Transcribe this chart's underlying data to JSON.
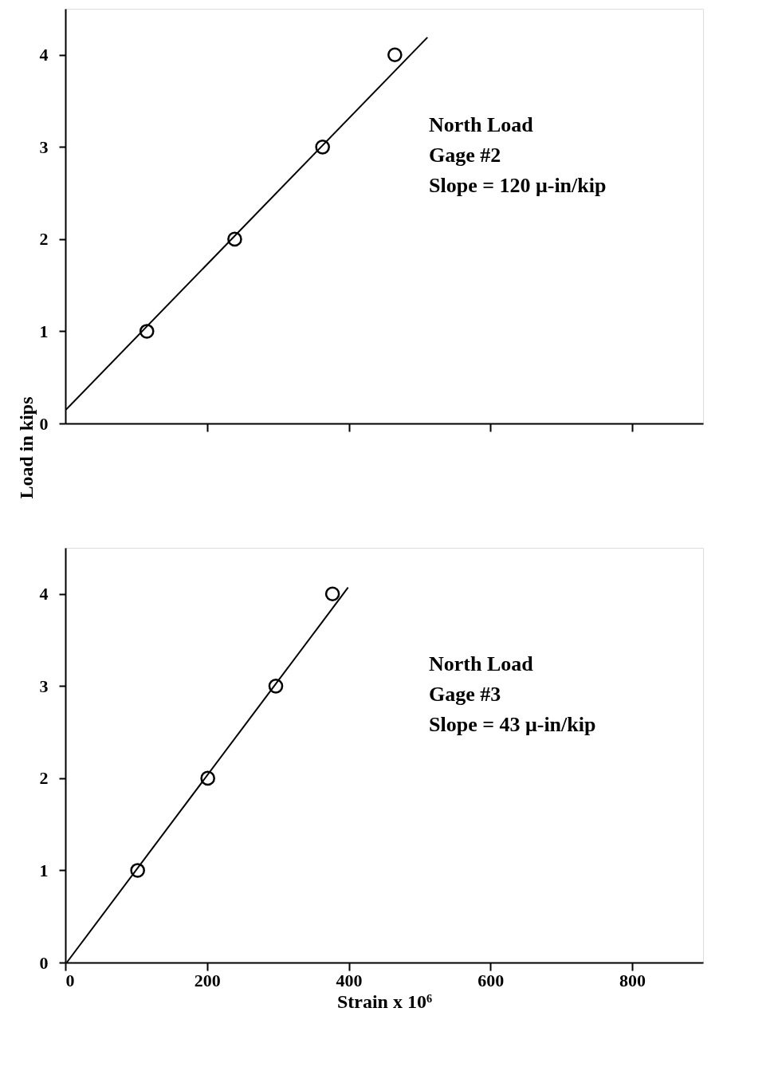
{
  "chart_data": [
    {
      "type": "scatter",
      "ylabel": "Load in kips",
      "xlim": [
        0,
        900
      ],
      "ylim": [
        0,
        4.5
      ],
      "xticks": [
        {
          "value": 200,
          "label": null
        },
        {
          "value": 400,
          "label": null
        },
        {
          "value": 600,
          "label": null
        },
        {
          "value": 800,
          "label": null
        }
      ],
      "yticks": [
        0,
        1,
        2,
        3,
        4
      ],
      "tick_labels": "y",
      "grid": false,
      "annotations": [
        "North Load",
        "Gage #2",
        "Slope = 120 μ-in/kip"
      ],
      "series": [
        {
          "color": "#000000",
          "marker": "circle",
          "x": [
            115,
            239,
            363,
            465
          ],
          "values": [
            1,
            2,
            3,
            4
          ]
        },
        {
          "type": "line",
          "color": "#000000",
          "x": [
            1,
            511
          ],
          "values": [
            0.15,
            4.19
          ]
        }
      ]
    },
    {
      "type": "scatter",
      "xlabel": "Strain x 10⁶",
      "xlim": [
        0,
        900
      ],
      "ylim": [
        0,
        4.5
      ],
      "xticks": [
        0,
        200,
        400,
        600,
        800
      ],
      "yticks": [
        0,
        1,
        2,
        3,
        4
      ],
      "grid": false,
      "annotations": [
        "North Load",
        "Gage #3",
        "Slope = 43 μ-in/kip"
      ],
      "series": [
        {
          "color": "#000000",
          "marker": "circle",
          "x": [
            102,
            201,
            297,
            377
          ],
          "values": [
            1,
            2,
            3,
            4
          ]
        },
        {
          "type": "line",
          "color": "#000000",
          "x": [
            2,
            399
          ],
          "values": [
            0,
            4.07
          ]
        }
      ]
    }
  ]
}
